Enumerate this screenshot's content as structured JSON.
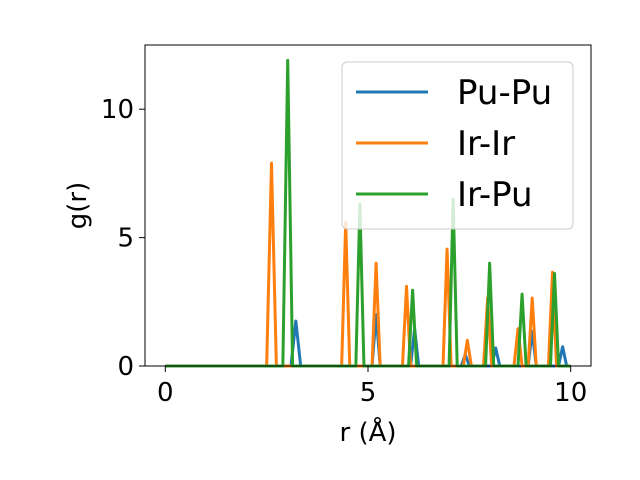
{
  "chart_data": {
    "type": "line",
    "xlabel": "r (Å)",
    "ylabel": "g(r)",
    "xlim": [
      -0.5,
      10.5
    ],
    "ylim": [
      0,
      12.5
    ],
    "xticks": [
      0,
      5,
      10
    ],
    "yticks": [
      0,
      5,
      10
    ],
    "xtick_labels": [
      "0",
      "5",
      "10"
    ],
    "ytick_labels": [
      "0",
      "5",
      "10"
    ],
    "grid": false,
    "legend_position": "top-right",
    "series": [
      {
        "name": "Pu-Pu",
        "color": "#1f77b4",
        "x": [
          0,
          3.1,
          3.22,
          3.34,
          5.1,
          5.2,
          5.3,
          6.05,
          6.15,
          6.25,
          7.3,
          7.4,
          7.5,
          8.05,
          8.15,
          8.25,
          8.95,
          9.05,
          9.15,
          9.7,
          9.8,
          9.9,
          10
        ],
        "y": [
          0,
          0,
          1.75,
          0,
          0,
          2.0,
          0,
          0,
          1.45,
          0,
          0,
          0.45,
          0,
          0,
          0.7,
          0,
          0,
          1.35,
          0,
          0,
          0.75,
          0,
          0
        ]
      },
      {
        "name": "Ir-Ir",
        "color": "#ff7f0e",
        "x": [
          0,
          2.5,
          2.62,
          2.74,
          4.35,
          4.45,
          4.55,
          5.1,
          5.2,
          5.3,
          5.85,
          5.95,
          6.05,
          6.85,
          6.95,
          7.05,
          7.35,
          7.45,
          7.55,
          7.85,
          7.95,
          8.05,
          8.6,
          8.7,
          8.8,
          8.95,
          9.05,
          9.15,
          9.45,
          9.55,
          9.65,
          10
        ],
        "y": [
          0,
          0,
          7.9,
          0,
          0,
          5.6,
          0,
          0,
          4.0,
          0,
          0,
          3.1,
          0,
          0,
          4.55,
          0,
          0,
          1.0,
          0,
          0,
          2.65,
          0,
          0,
          1.45,
          0,
          0,
          2.65,
          0,
          0,
          3.65,
          0,
          0
        ]
      },
      {
        "name": "Ir-Pu",
        "color": "#2ca02c",
        "x": [
          0,
          2.9,
          3.02,
          3.14,
          4.7,
          4.8,
          4.9,
          6.0,
          6.1,
          6.2,
          7.0,
          7.1,
          7.2,
          7.9,
          8.0,
          8.1,
          8.7,
          8.8,
          8.9,
          9.5,
          9.6,
          9.7,
          10
        ],
        "y": [
          0,
          0,
          11.9,
          0,
          0,
          6.3,
          0,
          0,
          2.95,
          0,
          0,
          6.5,
          0,
          0,
          4.0,
          0,
          0,
          2.8,
          0,
          0,
          3.6,
          0,
          0
        ]
      }
    ]
  }
}
